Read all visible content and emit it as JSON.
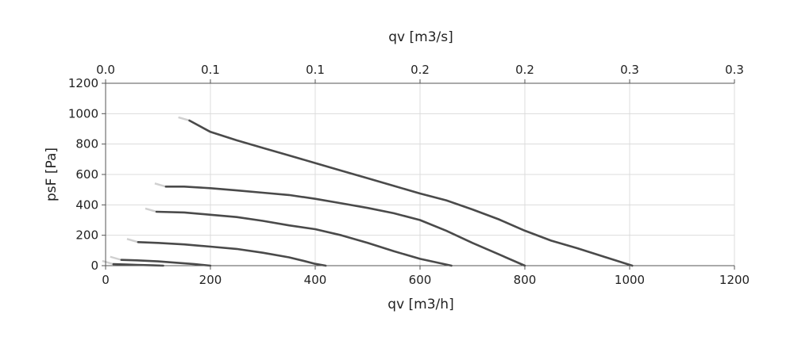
{
  "chart_data": {
    "type": "line",
    "xlabel": "qv [m3/h]",
    "ylabel": "psF [Pa]",
    "x2label": "qv [m3/s]",
    "xlim": [
      0,
      1200
    ],
    "ylim": [
      0,
      1200
    ],
    "x_ticks": [
      0,
      200,
      400,
      600,
      800,
      1000,
      1200
    ],
    "y_ticks": [
      0,
      200,
      400,
      600,
      800,
      1000,
      1200
    ],
    "x2_tick_labels": [
      "0.0",
      "0.1",
      "0.1",
      "0.2",
      "0.2",
      "0.3",
      "0.3"
    ],
    "grid": true,
    "line_color": "#4a4a4a",
    "series": [
      {
        "x": [
          160,
          200,
          250,
          300,
          350,
          400,
          450,
          500,
          550,
          600,
          650,
          700,
          750,
          800,
          850,
          900,
          950,
          1005
        ],
        "y": [
          955,
          880,
          825,
          775,
          725,
          675,
          625,
          575,
          525,
          475,
          430,
          370,
          305,
          230,
          165,
          115,
          60,
          0
        ]
      },
      {
        "x": [
          115,
          150,
          200,
          250,
          300,
          350,
          400,
          450,
          500,
          550,
          600,
          650,
          700,
          750,
          800
        ],
        "y": [
          520,
          520,
          510,
          495,
          480,
          465,
          440,
          410,
          380,
          345,
          300,
          230,
          150,
          75,
          0
        ]
      },
      {
        "x": [
          97,
          150,
          200,
          250,
          300,
          350,
          400,
          450,
          500,
          550,
          600,
          660
        ],
        "y": [
          355,
          350,
          335,
          320,
          295,
          265,
          240,
          200,
          150,
          95,
          45,
          0
        ]
      },
      {
        "x": [
          62,
          100,
          150,
          200,
          250,
          300,
          350,
          380,
          400,
          420
        ],
        "y": [
          155,
          150,
          140,
          125,
          110,
          85,
          55,
          30,
          12,
          0
        ]
      },
      {
        "x": [
          30,
          60,
          100,
          140,
          170,
          200
        ],
        "y": [
          38,
          35,
          28,
          18,
          10,
          0
        ]
      },
      {
        "x": [
          15,
          40,
          60,
          90,
          110
        ],
        "y": [
          10,
          8,
          5,
          2,
          0
        ]
      }
    ]
  }
}
